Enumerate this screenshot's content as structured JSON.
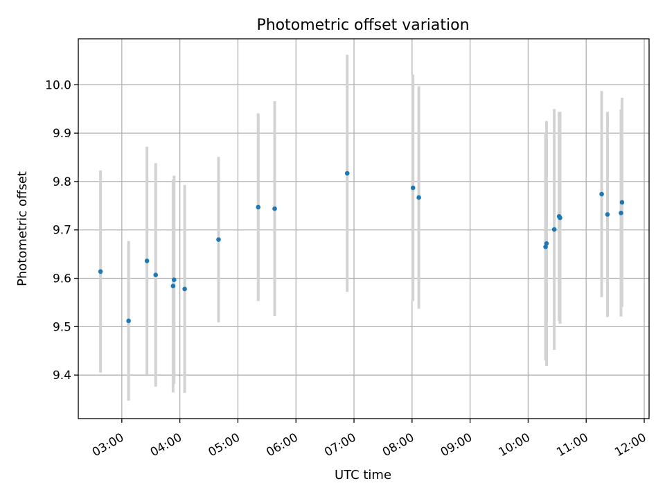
{
  "chart_data": {
    "type": "scatter",
    "title": "Photometric offset variation",
    "xlabel": "UTC time",
    "ylabel": "Photometric offset",
    "x_unit": "hours UTC",
    "xlim": [
      "02:15",
      "12:05"
    ],
    "ylim": [
      9.31,
      10.095
    ],
    "grid": true,
    "x_ticks": [
      {
        "value": "03:00",
        "label": "03:00"
      },
      {
        "value": "04:00",
        "label": "04:00"
      },
      {
        "value": "05:00",
        "label": "05:00"
      },
      {
        "value": "06:00",
        "label": "06:00"
      },
      {
        "value": "07:00",
        "label": "07:00"
      },
      {
        "value": "08:00",
        "label": "08:00"
      },
      {
        "value": "09:00",
        "label": "09:00"
      },
      {
        "value": "10:00",
        "label": "10:00"
      },
      {
        "value": "11:00",
        "label": "11:00"
      },
      {
        "value": "12:00",
        "label": "12:00"
      }
    ],
    "y_ticks": [
      {
        "value": 9.4,
        "label": "9.4"
      },
      {
        "value": 9.5,
        "label": "9.5"
      },
      {
        "value": 9.6,
        "label": "9.6"
      },
      {
        "value": 9.7,
        "label": "9.7"
      },
      {
        "value": 9.8,
        "label": "9.8"
      },
      {
        "value": 9.9,
        "label": "9.9"
      },
      {
        "value": 10.0,
        "label": "10.0"
      }
    ],
    "series": [
      {
        "color": "#1f77b4",
        "errorbar_color": "#d3d3d3",
        "points": [
          {
            "x": "02:38",
            "y": 9.614,
            "err": 0.209
          },
          {
            "x": "03:07",
            "y": 9.512,
            "err": 0.165
          },
          {
            "x": "03:26",
            "y": 9.636,
            "err": 0.236
          },
          {
            "x": "03:35",
            "y": 9.607,
            "err": 0.231
          },
          {
            "x": "03:53",
            "y": 9.584,
            "err": 0.22
          },
          {
            "x": "03:54",
            "y": 9.597,
            "err": 0.215
          },
          {
            "x": "04:05",
            "y": 9.578,
            "err": 0.215
          },
          {
            "x": "04:40",
            "y": 9.68,
            "err": 0.171
          },
          {
            "x": "05:21",
            "y": 9.747,
            "err": 0.194
          },
          {
            "x": "05:38",
            "y": 9.744,
            "err": 0.222
          },
          {
            "x": "06:53",
            "y": 9.817,
            "err": 0.245
          },
          {
            "x": "08:01",
            "y": 9.787,
            "err": 0.234
          },
          {
            "x": "08:07",
            "y": 9.767,
            "err": 0.23
          },
          {
            "x": "10:18",
            "y": 9.665,
            "err": 0.235
          },
          {
            "x": "10:19",
            "y": 9.672,
            "err": 0.253
          },
          {
            "x": "10:27",
            "y": 9.701,
            "err": 0.249
          },
          {
            "x": "10:32",
            "y": 9.728,
            "err": 0.216
          },
          {
            "x": "10:33",
            "y": 9.725,
            "err": 0.219
          },
          {
            "x": "11:16",
            "y": 9.774,
            "err": 0.213
          },
          {
            "x": "11:22",
            "y": 9.732,
            "err": 0.212
          },
          {
            "x": "11:36",
            "y": 9.735,
            "err": 0.214
          },
          {
            "x": "11:37",
            "y": 9.757,
            "err": 0.216
          }
        ]
      }
    ]
  }
}
